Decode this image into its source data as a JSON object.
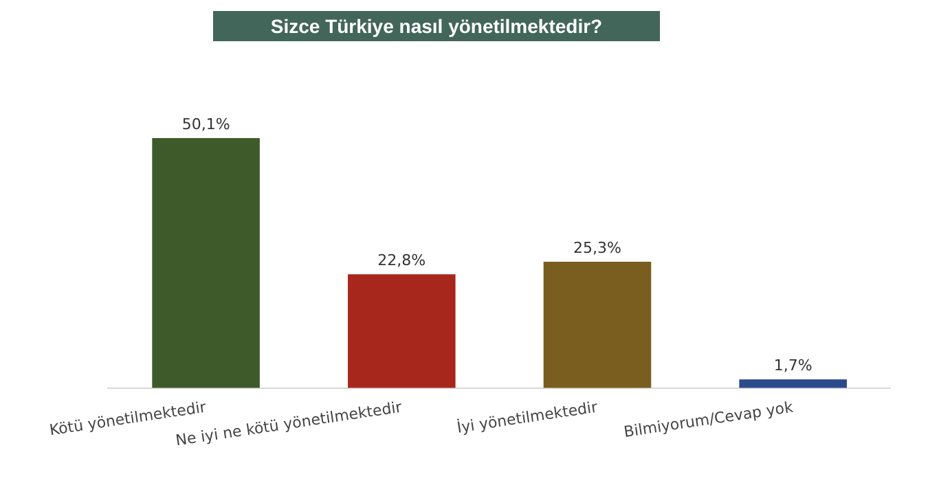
{
  "chart_data": {
    "type": "bar",
    "title": "Sizce Türkiye nasıl yönetilmektedir?",
    "categories": [
      "Kötü yönetilmektedir",
      "Ne iyi ne kötü yönetilmektedir",
      "İyi yönetilmektedir",
      "Bilmiyorum/Cevap yok"
    ],
    "values": [
      50.1,
      22.8,
      25.3,
      1.7
    ],
    "colors": [
      "#3f5a2a",
      "#a8271c",
      "#7a5e1f",
      "#2b4a8c"
    ],
    "value_labels": [
      "50,1%",
      "22,8%",
      "25,3%",
      "1,7%"
    ],
    "grid": false,
    "legend": false
  }
}
